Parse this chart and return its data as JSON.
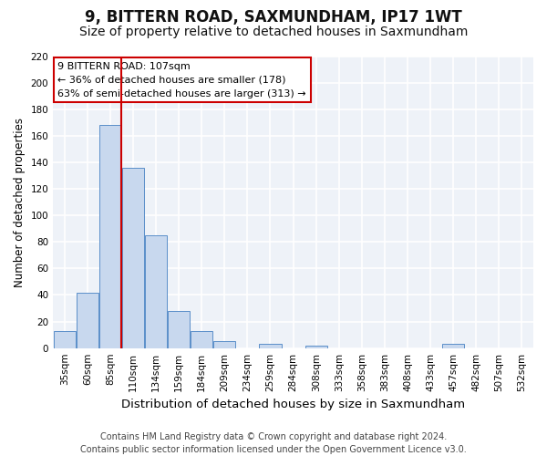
{
  "title": "9, BITTERN ROAD, SAXMUNDHAM, IP17 1WT",
  "subtitle": "Size of property relative to detached houses in Saxmundham",
  "xlabel": "Distribution of detached houses by size in Saxmundham",
  "ylabel": "Number of detached properties",
  "bar_labels": [
    "35sqm",
    "60sqm",
    "85sqm",
    "110sqm",
    "134sqm",
    "159sqm",
    "184sqm",
    "209sqm",
    "234sqm",
    "259sqm",
    "284sqm",
    "308sqm",
    "333sqm",
    "358sqm",
    "383sqm",
    "408sqm",
    "433sqm",
    "457sqm",
    "482sqm",
    "507sqm",
    "532sqm"
  ],
  "bar_values": [
    13,
    42,
    168,
    136,
    85,
    28,
    13,
    5,
    0,
    3,
    0,
    2,
    0,
    0,
    0,
    0,
    0,
    3,
    0,
    0,
    0
  ],
  "bar_color": "#c8d8ee",
  "bar_edgecolor": "#5b8fc9",
  "vline_after_index": 2,
  "vline_color": "#cc0000",
  "annotation_title": "9 BITTERN ROAD: 107sqm",
  "annotation_line1": "← 36% of detached houses are smaller (178)",
  "annotation_line2": "63% of semi-detached houses are larger (313) →",
  "annotation_box_edgecolor": "#cc0000",
  "ylim": [
    0,
    220
  ],
  "yticks": [
    0,
    20,
    40,
    60,
    80,
    100,
    120,
    140,
    160,
    180,
    200,
    220
  ],
  "footer_line1": "Contains HM Land Registry data © Crown copyright and database right 2024.",
  "footer_line2": "Contains public sector information licensed under the Open Government Licence v3.0.",
  "bg_color": "#ffffff",
  "plot_bg_color": "#eef2f8",
  "grid_color": "#ffffff",
  "title_fontsize": 12,
  "subtitle_fontsize": 10,
  "xlabel_fontsize": 9.5,
  "ylabel_fontsize": 8.5,
  "tick_fontsize": 7.5,
  "annotation_fontsize": 8,
  "footer_fontsize": 7
}
